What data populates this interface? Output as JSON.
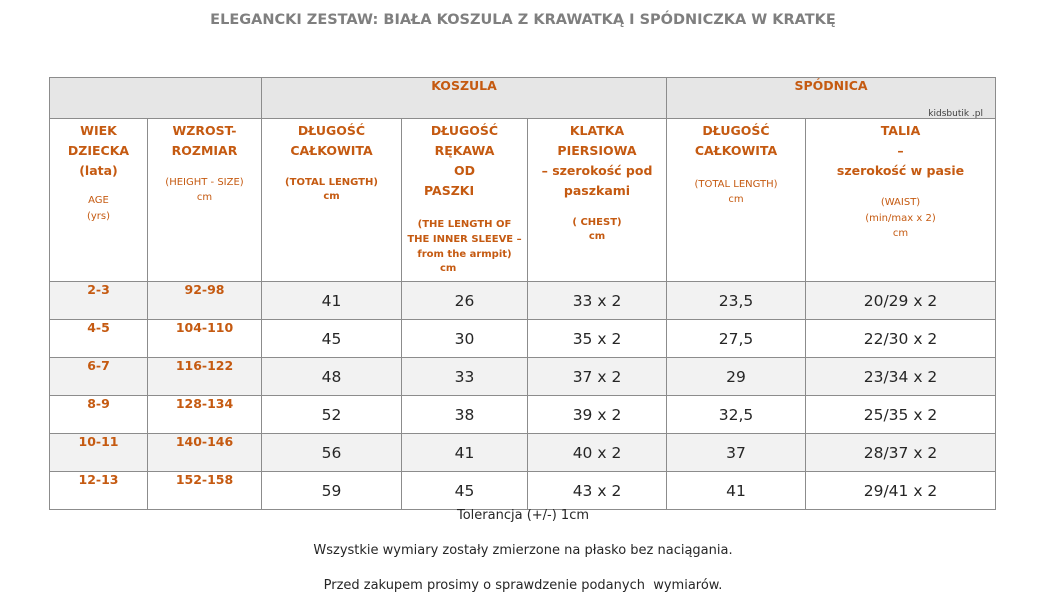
{
  "title": "ELEGANCKI ZESTAW: BIAŁA KOSZULA Z KRAWATKĄ I SPÓDNICZKA W KRATKĘ",
  "groups": {
    "shirt": "KOSZULA",
    "skirt": "SPÓDNICA",
    "brand": "kidsbutik .pl"
  },
  "headers": {
    "age": {
      "l1": "WIEK",
      "l2": "DZIECKA",
      "l3": "(lata)",
      "en1": "AGE",
      "en2": "(yrs)"
    },
    "height": {
      "l1": "WZROST-",
      "l2": "ROZMIAR",
      "en": "(HEIGHT - SIZE)",
      "unit": "cm"
    },
    "shirt_length": {
      "l1": "DŁUGOŚĆ",
      "l2": "CAŁKOWITA",
      "en": "(TOTAL LENGTH)",
      "unit": "cm"
    },
    "sleeve": {
      "l1": "DŁUGOŚĆ",
      "l2": "RĘKAWA",
      "l3": "OD",
      "l4": "PASZKI",
      "en1": "(THE LENGTH OF",
      "en2": "THE INNER SLEEVE –",
      "en3": "from the armpit)",
      "unit": "cm"
    },
    "chest": {
      "l1": "KLATKA",
      "l2": "PIERSIOWA",
      "l3": "– szerokość pod",
      "l4": "paszkami",
      "en": "( CHEST)",
      "unit": "cm"
    },
    "skirt_length": {
      "l1": "DŁUGOŚĆ",
      "l2": "CAŁKOWITA",
      "en": "(TOTAL LENGTH)",
      "unit": "cm"
    },
    "waist": {
      "l1": "TALIA",
      "l2": "–",
      "l3": "szerokość w pasie",
      "en1": "(WAIST)",
      "en2": "(min/max x 2)",
      "unit": "cm"
    }
  },
  "rows": [
    {
      "age": "2-3",
      "height": "92-98",
      "shirt_length": "41",
      "sleeve": "26",
      "chest": "33 x 2",
      "skirt_length": "23,5",
      "waist": "20/29 x 2"
    },
    {
      "age": "4-5",
      "height": "104-110",
      "shirt_length": "45",
      "sleeve": "30",
      "chest": "35 x 2",
      "skirt_length": "27,5",
      "waist": "22/30 x 2"
    },
    {
      "age": "6-7",
      "height": "116-122",
      "shirt_length": "48",
      "sleeve": "33",
      "chest": "37 x 2",
      "skirt_length": "29",
      "waist": "23/34 x 2"
    },
    {
      "age": "8-9",
      "height": "128-134",
      "shirt_length": "52",
      "sleeve": "38",
      "chest": "39 x 2",
      "skirt_length": "32,5",
      "waist": "25/35 x 2"
    },
    {
      "age": "10-11",
      "height": "140-146",
      "shirt_length": "56",
      "sleeve": "41",
      "chest": "40 x 2",
      "skirt_length": "37",
      "waist": "28/37 x 2"
    },
    {
      "age": "12-13",
      "height": "152-158",
      "shirt_length": "59",
      "sleeve": "45",
      "chest": "43 x 2",
      "skirt_length": "41",
      "waist": "29/41 x 2"
    }
  ],
  "notes": {
    "tolerance": "Tolerancja (+/-) 1cm",
    "flat": "Wszystkie wymiary zostały zmierzone na płasko bez naciągania.",
    "check": "Przed zakupem prosimy o sprawdzenie podanych  wymiarów."
  }
}
